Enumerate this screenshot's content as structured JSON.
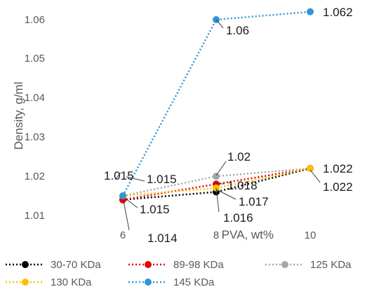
{
  "chart_data": {
    "type": "line",
    "xlabel": "PVA, wt%",
    "ylabel": "Density, g/ml",
    "ylim": [
      1.005,
      1.065
    ],
    "y_ticks": [
      "1.01",
      "1.02",
      "1.03",
      "1.04",
      "1.05",
      "1.06"
    ],
    "y_tick_values": [
      1.01,
      1.02,
      1.03,
      1.04,
      1.05,
      1.06
    ],
    "categories": [
      "6",
      "8",
      "10"
    ],
    "grid": "none",
    "legend_position": "bottom",
    "series": [
      {
        "name": "30-70 KDa",
        "color": "#000000",
        "values": [
          1.014,
          1.016,
          1.022
        ],
        "labels": [
          "1.014",
          "1.016",
          ""
        ]
      },
      {
        "name": "89-98 KDa",
        "color": "#e00000",
        "values": [
          1.014,
          1.018,
          1.022
        ],
        "labels": [
          "",
          "1.018",
          ""
        ]
      },
      {
        "name": "125 KDa",
        "color": "#a6a6a6",
        "values": [
          1.015,
          1.02,
          1.022
        ],
        "labels": [
          "1.015",
          "1.02",
          ""
        ]
      },
      {
        "name": "130 KDa",
        "color": "#ffc000",
        "values": [
          1.015,
          1.017,
          1.022
        ],
        "labels": [
          "1.015",
          "1.017",
          "1.022"
        ]
      },
      {
        "name": "145 KDa",
        "color": "#2e96d8",
        "values": [
          1.015,
          1.06,
          1.062
        ],
        "labels": [
          "1.015",
          "1.06",
          "1.062"
        ]
      }
    ],
    "extra_labels": [
      "1.022"
    ]
  }
}
